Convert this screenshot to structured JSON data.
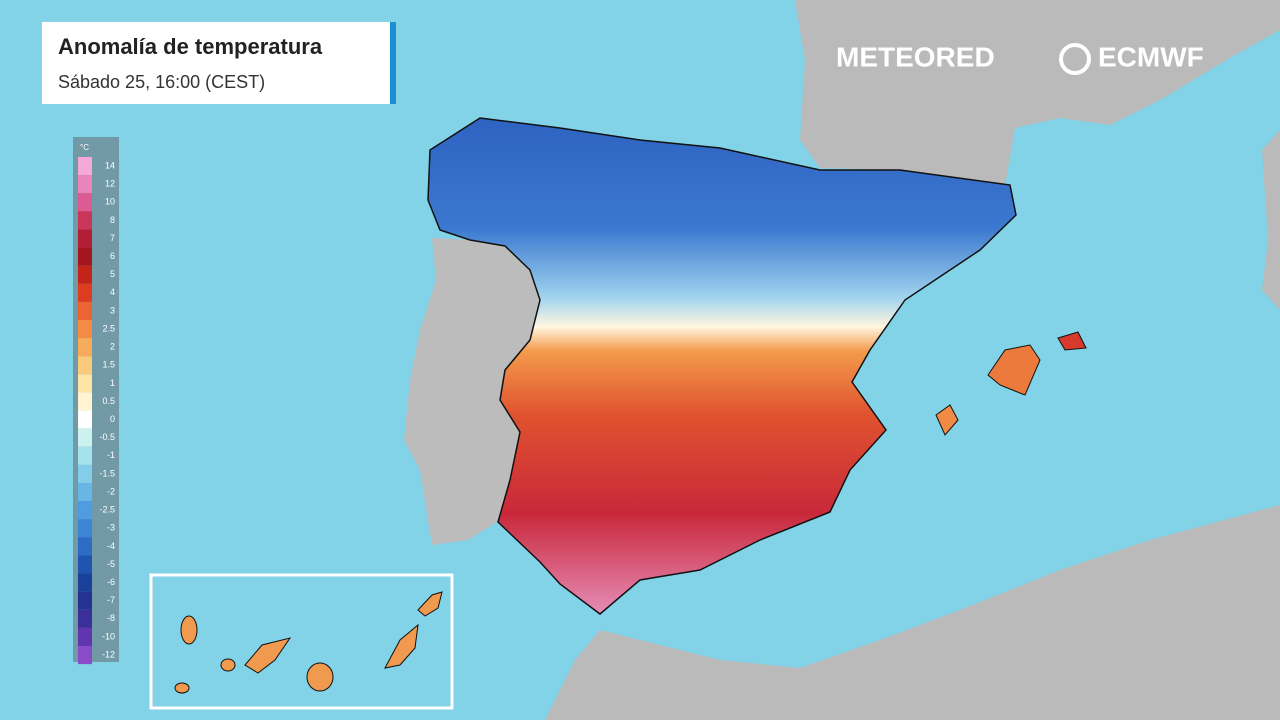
{
  "header": {
    "title": "Anomalía de temperatura",
    "subtitle": "Sábado 25, 16:00 (CEST)"
  },
  "logos": {
    "left": "METEORED",
    "right": "ECMWF"
  },
  "legend": {
    "unit": "°C",
    "items": [
      {
        "value": 14,
        "color": "#f5a9d8"
      },
      {
        "value": 12,
        "color": "#ea84bd"
      },
      {
        "value": 10,
        "color": "#dc5b92"
      },
      {
        "value": 8,
        "color": "#c8375a"
      },
      {
        "value": 7,
        "color": "#b21e35"
      },
      {
        "value": 6,
        "color": "#a31620"
      },
      {
        "value": 5,
        "color": "#c22418"
      },
      {
        "value": 4,
        "color": "#dc3c20"
      },
      {
        "value": 3,
        "color": "#ea6434"
      },
      {
        "value": 2.5,
        "color": "#f38a45"
      },
      {
        "value": 2,
        "color": "#f7ac5c"
      },
      {
        "value": 1.5,
        "color": "#fbc97c"
      },
      {
        "value": 1,
        "color": "#fde3a4"
      },
      {
        "value": 0.5,
        "color": "#fff3d2"
      },
      {
        "value": 0,
        "color": "#ffffff"
      },
      {
        "value": -0.5,
        "color": "#cdf1ee"
      },
      {
        "value": -1,
        "color": "#a5e2ec"
      },
      {
        "value": -1.5,
        "color": "#84cdea"
      },
      {
        "value": -2,
        "color": "#68b5e6"
      },
      {
        "value": -2.5,
        "color": "#4f9ce0"
      },
      {
        "value": -3,
        "color": "#3c85d6"
      },
      {
        "value": -4,
        "color": "#2c6cc5"
      },
      {
        "value": -5,
        "color": "#1f55b0"
      },
      {
        "value": -6,
        "color": "#1a419a"
      },
      {
        "value": -7,
        "color": "#243391"
      },
      {
        "value": -8,
        "color": "#3b2f99"
      },
      {
        "value": -10,
        "color": "#6036b0"
      },
      {
        "value": -12,
        "color": "#8a4bc9"
      }
    ]
  }
}
